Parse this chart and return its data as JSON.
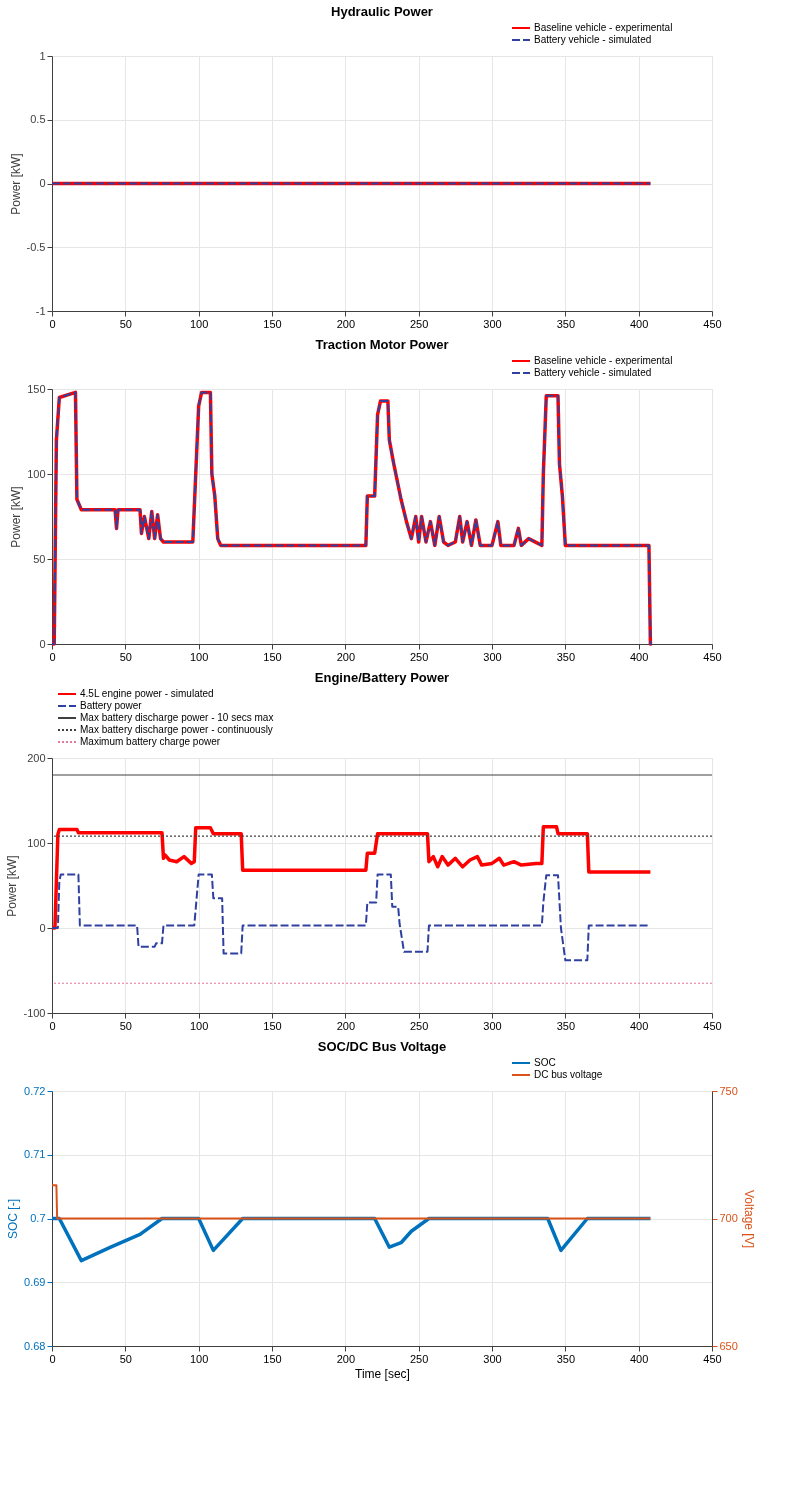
{
  "chart_data": [
    {
      "type": "line",
      "title": "Hydraulic Power",
      "ylabel": "Power [kW]",
      "x": [
        0,
        408
      ],
      "xlim": [
        0,
        450
      ],
      "xticks": [
        0,
        50,
        100,
        150,
        200,
        250,
        300,
        350,
        400,
        450
      ],
      "ylim": [
        -1,
        1
      ],
      "yticks": [
        -1,
        -0.5,
        0,
        0.5,
        1
      ],
      "grid": true,
      "legend": "top right",
      "series": [
        {
          "name": "Baseline vehicle - experimental",
          "color": "#ff0000",
          "line_style": "solid",
          "values": [
            0,
            0
          ]
        },
        {
          "name": "Battery vehicle - simulated",
          "color": "#3040a0",
          "line_style": "dashed",
          "values": [
            0,
            0
          ]
        }
      ]
    },
    {
      "type": "line",
      "title": "Traction Motor Power",
      "ylabel": "Power [kW]",
      "xlim": [
        0,
        450
      ],
      "xticks": [
        0,
        50,
        100,
        150,
        200,
        250,
        300,
        350,
        400,
        450
      ],
      "ylim": [
        0,
        150
      ],
      "yticks": [
        0,
        50,
        100,
        150
      ],
      "grid": true,
      "legend": "top right",
      "x": [
        0,
        1.5,
        3,
        5,
        16,
        17,
        20,
        43,
        44,
        45,
        60,
        61,
        63,
        66,
        68,
        70,
        72,
        74,
        76,
        96,
        98,
        100,
        102,
        108,
        109,
        111,
        113,
        115,
        214,
        215,
        220,
        222,
        224,
        229,
        230,
        233,
        238,
        242,
        245,
        248,
        250,
        252,
        255,
        258,
        261,
        264,
        267,
        270,
        275,
        278,
        280,
        283,
        286,
        289,
        292,
        300,
        304,
        306,
        315,
        318,
        320,
        325,
        334,
        335,
        337,
        345,
        346,
        348,
        350,
        407,
        408,
        409
      ],
      "series": [
        {
          "name": "Baseline vehicle - experimental",
          "color": "#ff0000",
          "line_style": "solid",
          "values": [
            0,
            0,
            120,
            145,
            148,
            85,
            79,
            79,
            68,
            79,
            79,
            65,
            75,
            62,
            78,
            62,
            76,
            62,
            60,
            60,
            100,
            140,
            148,
            148,
            100,
            87,
            62,
            58,
            58,
            87,
            87,
            135,
            143,
            143,
            120,
            106,
            85,
            71,
            62,
            75,
            60,
            75,
            60,
            72,
            58,
            75,
            60,
            58,
            60,
            75,
            60,
            72,
            58,
            73,
            58,
            58,
            72,
            58,
            58,
            68,
            58,
            62,
            58,
            100,
            146,
            146,
            106,
            87,
            58,
            58,
            0,
            0
          ]
        },
        {
          "name": "Battery vehicle - simulated",
          "color": "#3040a0",
          "line_style": "dashed",
          "values": [
            0,
            0,
            120,
            145,
            148,
            85,
            79,
            79,
            68,
            79,
            79,
            65,
            75,
            62,
            78,
            62,
            76,
            62,
            60,
            60,
            100,
            140,
            148,
            148,
            100,
            87,
            62,
            58,
            58,
            87,
            87,
            135,
            143,
            143,
            120,
            106,
            85,
            71,
            62,
            75,
            60,
            75,
            60,
            72,
            58,
            75,
            60,
            58,
            60,
            75,
            60,
            72,
            58,
            73,
            58,
            58,
            72,
            58,
            58,
            68,
            58,
            62,
            58,
            100,
            146,
            146,
            106,
            87,
            58,
            58,
            0,
            0
          ]
        }
      ]
    },
    {
      "type": "line",
      "title": "Engine/Battery Power",
      "ylabel": "Power [kW]",
      "xlim": [
        0,
        450
      ],
      "xticks": [
        0,
        50,
        100,
        150,
        200,
        250,
        300,
        350,
        400,
        450
      ],
      "ylim": [
        -100,
        200
      ],
      "yticks": [
        -100,
        0,
        100,
        200
      ],
      "grid": true,
      "legend": "top left",
      "series": [
        {
          "name": "4.5L engine power - simulated",
          "color": "#ff0000",
          "line_style": "solid",
          "x": [
            0,
            2,
            4,
            5,
            17,
            18,
            75,
            76,
            77,
            80,
            85,
            90,
            95,
            97,
            98,
            108,
            110,
            129,
            130,
            214,
            215,
            220,
            222,
            256,
            257,
            260,
            263,
            266,
            270,
            275,
            280,
            285,
            290,
            293,
            300,
            305,
            308,
            315,
            320,
            330,
            334,
            335,
            344,
            345,
            365,
            366,
            408
          ],
          "values": [
            0,
            0,
            110,
            116,
            116,
            112,
            112,
            82,
            86,
            80,
            78,
            84,
            76,
            78,
            118,
            118,
            111,
            111,
            68,
            68,
            88,
            88,
            111,
            111,
            78,
            84,
            72,
            84,
            74,
            82,
            72,
            80,
            84,
            74,
            76,
            82,
            74,
            78,
            74,
            76,
            76,
            119,
            119,
            111,
            111,
            66,
            66
          ]
        },
        {
          "name": "Battery power",
          "color": "#3040a0",
          "line_style": "dashed",
          "x": [
            0,
            4,
            5,
            6,
            18,
            19,
            58,
            59,
            70,
            71,
            75,
            76,
            97,
            100,
            109,
            110,
            116,
            117,
            129,
            130,
            214,
            215,
            221,
            222,
            231,
            232,
            236,
            237,
            240,
            256,
            257,
            334,
            335,
            337,
            345,
            347,
            350,
            365,
            366,
            408
          ],
          "values": [
            0,
            0,
            55,
            63,
            63,
            3,
            3,
            -22,
            -22,
            -18,
            -18,
            3,
            3,
            63,
            63,
            35,
            35,
            -30,
            -30,
            3,
            3,
            30,
            30,
            63,
            63,
            25,
            25,
            5,
            -28,
            -28,
            3,
            3,
            30,
            62,
            62,
            0,
            -38,
            -38,
            3,
            3
          ]
        }
      ],
      "ref_lines": [
        {
          "axis": "y",
          "value": 180,
          "label": "Max battery discharge power - 10 secs max",
          "color": "#404040",
          "line_style": "solid"
        },
        {
          "axis": "y",
          "value": 108,
          "label": "Max battery discharge power - continuously",
          "color": "#404040",
          "line_style": "dotted"
        },
        {
          "axis": "y",
          "value": -65,
          "label": "Maximum battery charge power",
          "color": "#e377a0",
          "line_style": "dotted"
        }
      ]
    },
    {
      "type": "line",
      "title": "SOC/DC Bus Voltage",
      "xlabel": "Time [sec]",
      "ylabel": "SOC [-]",
      "y2label": "Voltage [V]",
      "xlim": [
        0,
        450
      ],
      "xticks": [
        0,
        50,
        100,
        150,
        200,
        250,
        300,
        350,
        400,
        450
      ],
      "ylim": [
        0.68,
        0.72
      ],
      "yticks": [
        0.68,
        0.69,
        0.7,
        0.71,
        0.72
      ],
      "y2lim": [
        650,
        750
      ],
      "y2ticks": [
        650,
        700,
        750
      ],
      "grid": true,
      "legend": "top right",
      "series": [
        {
          "name": "SOC",
          "color": "#0072bd",
          "line_style": "solid",
          "x": [
            0,
            5,
            20,
            40,
            60,
            75,
            100,
            110,
            130,
            220,
            230,
            238,
            245,
            257,
            338,
            347,
            365,
            408
          ],
          "values": [
            0.7,
            0.7,
            0.6934,
            0.6955,
            0.6975,
            0.7,
            0.7,
            0.695,
            0.7,
            0.7,
            0.6955,
            0.6962,
            0.698,
            0.7,
            0.7,
            0.695,
            0.7,
            0.7
          ]
        },
        {
          "name": "DC bus voltage",
          "color": "#d95319",
          "line_style": "solid",
          "axis": "y2",
          "x": [
            0,
            3,
            3.5,
            408
          ],
          "values": [
            713,
            713,
            700,
            700
          ]
        }
      ]
    }
  ]
}
